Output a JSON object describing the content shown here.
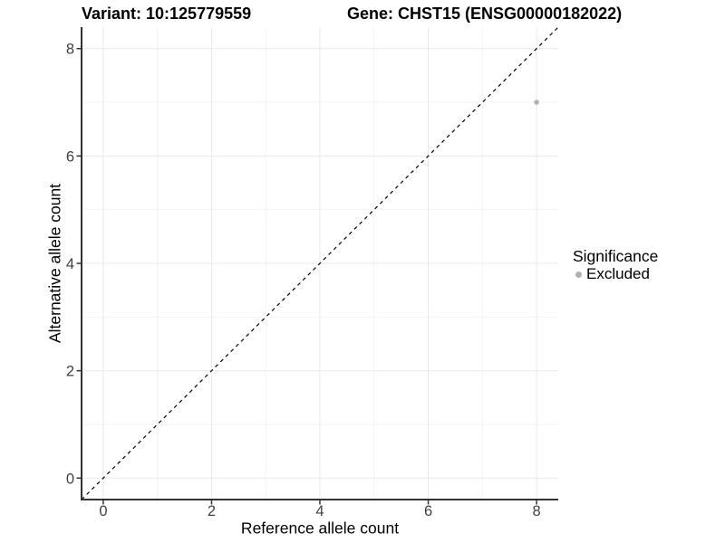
{
  "chart_data": {
    "type": "scatter",
    "titles": {
      "left": "Variant: 10:125779559",
      "right": "Gene: CHST15 (ENSG00000182022)"
    },
    "xlabel": "Reference allele count",
    "ylabel": "Alternative allele count",
    "xlim": [
      -0.4,
      8.4
    ],
    "ylim": [
      -0.4,
      8.4
    ],
    "xticks": [
      0,
      2,
      4,
      6,
      8
    ],
    "yticks": [
      0,
      2,
      4,
      6,
      8
    ],
    "xticks_minor": [
      1,
      3,
      5,
      7
    ],
    "yticks_minor": [
      1,
      3,
      5,
      7
    ],
    "grid": true,
    "points": [
      {
        "x": 8,
        "y": 7,
        "significance": "Excluded"
      }
    ],
    "identity_line": {
      "style": "dashed",
      "slope": 1,
      "intercept": 0,
      "color": "#000000"
    },
    "legend": {
      "title": "Significance",
      "position": "right",
      "entries": [
        {
          "label": "Excluded",
          "color": "#b0b0b0"
        }
      ]
    },
    "colors": {
      "background": "#ffffff",
      "grid_major": "#e8e8e8",
      "grid_minor": "#f3f3f3",
      "axis_line": "#333333",
      "tick_text": "#404040",
      "title_text": "#000000"
    }
  }
}
